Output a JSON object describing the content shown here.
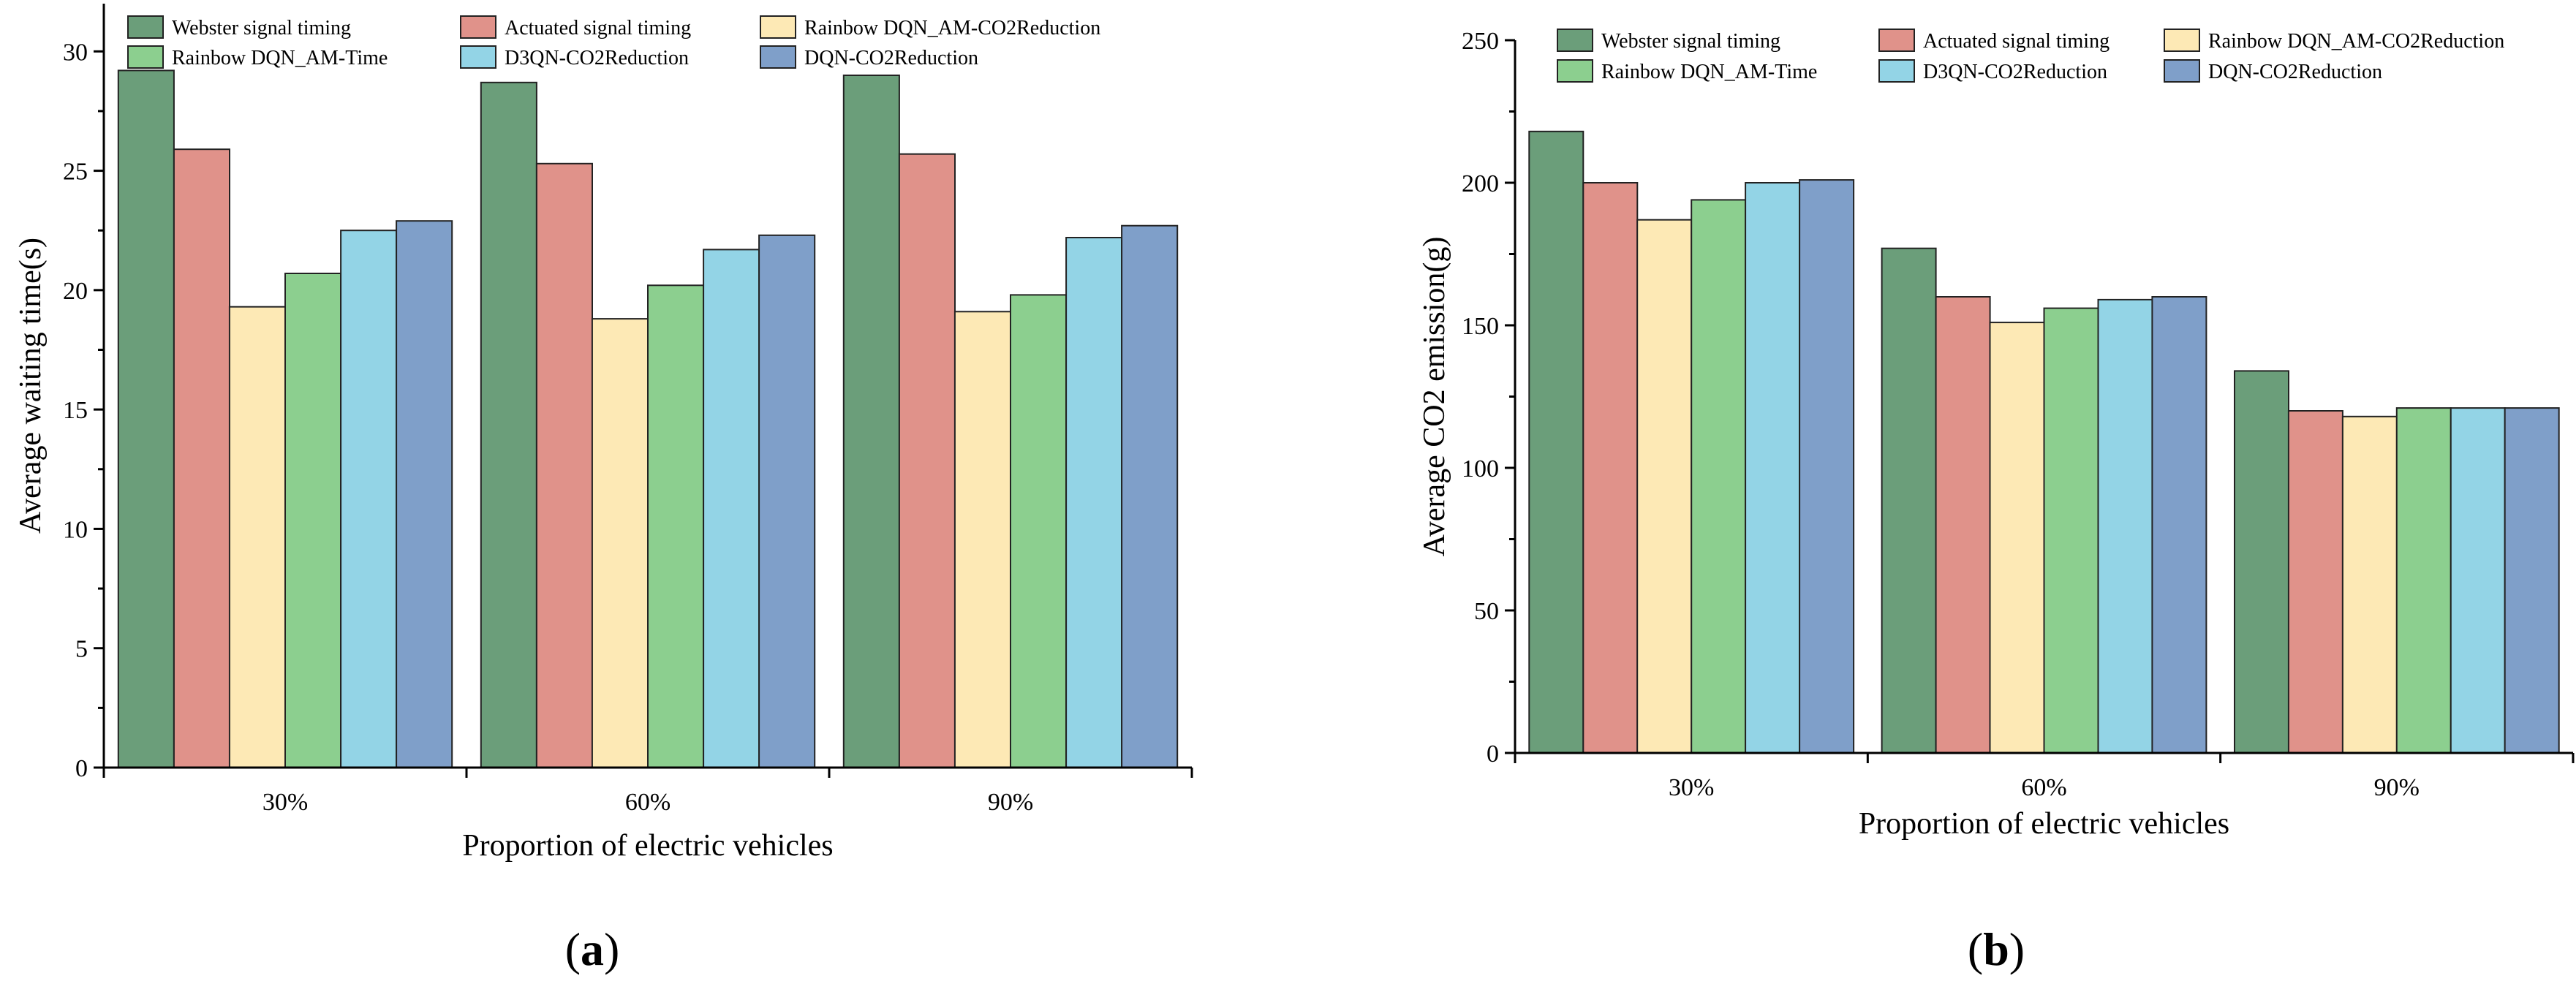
{
  "chart_data": [
    {
      "type": "bar",
      "panel_label": "(a)",
      "panel_letter": "a",
      "categories": [
        "30%",
        "60%",
        "90%"
      ],
      "xlabel": "Proportion of electric vehicles",
      "ylabel": "Average waiting time(s)",
      "ylim": [
        0,
        32
      ],
      "yticks": [
        0,
        5,
        10,
        15,
        20,
        25,
        30
      ],
      "series": [
        {
          "name": "Webster signal timing",
          "color": "#6b9e7a",
          "values": [
            29.2,
            28.7,
            29.0
          ]
        },
        {
          "name": "Actuated signal timing",
          "color": "#e0928a",
          "values": [
            25.9,
            25.3,
            25.7
          ]
        },
        {
          "name": "Rainbow DQN_AM-CO2Reduction",
          "color": "#fde9b5",
          "values": [
            19.3,
            18.8,
            19.1
          ]
        },
        {
          "name": "Rainbow DQN_AM-Time",
          "color": "#8ccf8f",
          "values": [
            20.7,
            20.2,
            19.8
          ]
        },
        {
          "name": "D3QN-CO2Reduction",
          "color": "#93d4e6",
          "values": [
            22.5,
            21.7,
            22.2
          ]
        },
        {
          "name": "DQN-CO2Reduction",
          "color": "#7f9fc9",
          "values": [
            22.9,
            22.3,
            22.7
          ]
        }
      ]
    },
    {
      "type": "bar",
      "panel_label": "(b)",
      "panel_letter": "b",
      "categories": [
        "30%",
        "60%",
        "90%"
      ],
      "xlabel": "Proportion of electric vehicles",
      "ylabel": "Average CO2 emission(g)",
      "ylim": [
        0,
        250
      ],
      "yticks": [
        0,
        50,
        100,
        150,
        200,
        250
      ],
      "series": [
        {
          "name": "Webster signal timing",
          "color": "#6b9e7a",
          "values": [
            218,
            177,
            134
          ]
        },
        {
          "name": "Actuated signal timing",
          "color": "#e0928a",
          "values": [
            200,
            160,
            120
          ]
        },
        {
          "name": "Rainbow DQN_AM-CO2Reduction",
          "color": "#fde9b5",
          "values": [
            187,
            151,
            118
          ]
        },
        {
          "name": "Rainbow DQN_AM-Time",
          "color": "#8ccf8f",
          "values": [
            194,
            156,
            121
          ]
        },
        {
          "name": "D3QN-CO2Reduction",
          "color": "#93d4e6",
          "values": [
            200,
            159,
            121
          ]
        },
        {
          "name": "DQN-CO2Reduction",
          "color": "#7f9fc9",
          "values": [
            201,
            160,
            121
          ]
        }
      ]
    }
  ]
}
